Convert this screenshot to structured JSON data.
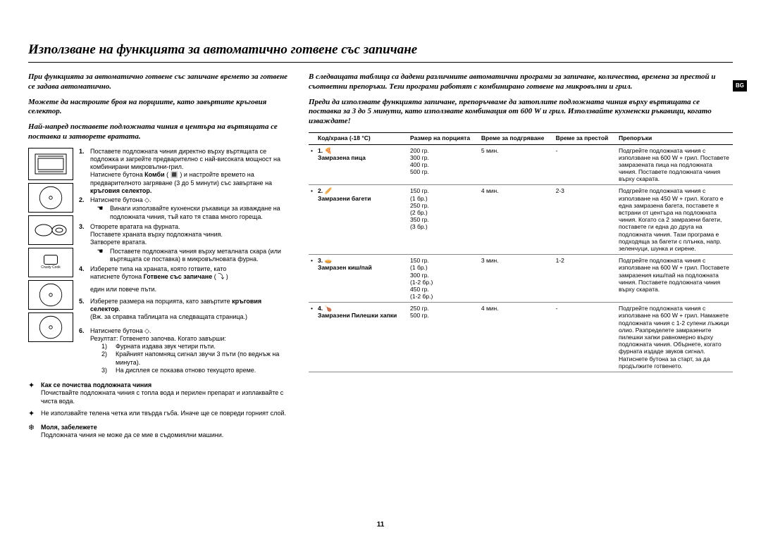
{
  "heading": "Използване на функцията за автоматично готвене със запичане",
  "badge": "BG",
  "pagenum": "11",
  "left": {
    "intro1": "При функцията за автоматично готвене със запичане времето за готвене се задава автоматично.",
    "intro2": "Можете да настроите броя на порциите, като завъртите кръговия селектор.",
    "intro3": "Най-напред поставете подложната чиния в центъра на въртящата се поставка и затворете вратата.",
    "step1": "Поставете подложната чиния директно върху въртящата се подложка и загрейте предварително с най-високата мощност на комбинирани микровълни-грил.",
    "step1b_a": "Натиснете бутона ",
    "step1b_b": "Комби",
    "step1b_c": " ( 🔳 ) и настройте времето на предварителното загряване (3 до 5 минути) със завъртане на ",
    "step1b_d": "кръговия селектор.",
    "step2": "Натиснете бутона ◇.",
    "step2_warn": "Винаги използвайте кухненски ръкавици за изваждане на подложната чиния, тъй като тя става много гореща.",
    "step3a": "Отворете вратата на фурната.",
    "step3b": "Поставете храната върху подложната чиния.",
    "step3c": "Затворете вратата.",
    "step3_warn": "Поставете подложната чиния върху металната скара (или въртящата се поставка) в микровълновата фурна.",
    "step4a": "Изберете типа на храната, която готвите, като",
    "step4b_a": "натиснете бутона ",
    "step4b_b": "Готвене със запичане",
    "step4b_c": " ( ⤵ )",
    "step4c": "един или повече пъти.",
    "step5a": "Изберете размера на порцията, като завъртите ",
    "step5b": "кръговия селектор",
    "step5c": "(Вж. за справка таблицата на следващата страница.)",
    "step6a": "Натиснете бутона ◇.",
    "step6b": "Резултат:   Готвенето започва. Когато завърши:",
    "step6_1": "Фурната издава звук четири пъти.",
    "step6_2": "Крайният напомнящ сигнал звучи 3 пъти (по веднъж на минута).",
    "step6_3": "На дисплея се показва отново текущото време.",
    "note1_title": "Как се почиства подложната чиния",
    "note1_body": "Почиствайте подложната чиния с топла вода и перилен препарат и изплаквайте с чиста вода.",
    "note2_body": "Не използвайте телена четка или твърда гъба. Иначе ще се повреди горният слой.",
    "note3_title": "Моля, забележете",
    "note3_body": "Подложната чиния не може да се мие в съдомиялни машини.",
    "crusty_label": "Crusty Cook"
  },
  "right": {
    "intro1": "В следващата таблица са дадени различните автоматични програми за запичане, количества, времена за престой и съответни препоръки. Тези програми работят с комбинирано готвене на микровълни и грил.",
    "intro2": "Преди да използвате функцията запичане, препоръчваме да затоплите подложната чиния върху въртящата се поставка за 3 до 5 минути, като използвате комбинация от 600 W и грил. Използвайте кухненски ръкавици, когато изваждате!",
    "headers": [
      "",
      "Код/храна (-18 °C)",
      "Размер на порцията",
      "Време за подгряване",
      "Време за престой",
      "Препоръки"
    ],
    "rows": [
      {
        "bullet": "•",
        "code": "1. 🍕\nЗамразена пица",
        "size": "200 гр.\n300 гр.\n400 гр.\n500 гр.",
        "heat": "5 мин.",
        "stand": "-",
        "rec": "Подгрейте подложната чиния с използване на 600 W + грил. Поставете замразената пица на подложната чиния. Поставете подложната чиния върху скарата."
      },
      {
        "bullet": "•",
        "code": "2. 🥖\nЗамразени багети",
        "size": "150 гр.\n(1 бр.)\n250 гр.\n(2 бр.)\n350 гр.\n(3 бр.)",
        "heat": "4 мин.",
        "stand": "2-3",
        "rec": "Подгрейте подложната чиния с използване на 450 W + грил. Когато е една замразена багета, поставете я встрани от центъра на подложната чиния. Когато са 2 замразени багети, поставете ги една до друга на подложната чиния. Тази програма е подходяща за багети с плънка, напр. зеленчуци, шунка и сирене."
      },
      {
        "bullet": "•",
        "code": "3. 🥧\nЗамразен киш/пай",
        "size": "150 гр.\n(1 бр.)\n300 гр.\n(1-2 бр.)\n450 гр.\n(1-2 бр.)",
        "heat": "3 мин.",
        "stand": "1-2",
        "rec": "Подгрейте подложната чиния с използване на 600 W + грил. Поставете замразения киш/пай на подложната чиния. Поставете подложната чиния върху скарата."
      },
      {
        "bullet": "•",
        "code": "4. 🍗\nЗамразени Пилешки хапки",
        "size": "250 гр.\n500 гр.",
        "heat": "4 мин.",
        "stand": "-",
        "rec": "Подгрейте подложната чиния с използване на 600 W + грил. Намажете подложната чиния с 1-2 супени лъжици олио. Разпределете замразените пилешки хапки равномерно върху подложната чиния. Обърнете, когато фурната издаде звуков сигнал. Натиснете бутона за старт, за да продължите готвенето."
      }
    ]
  }
}
